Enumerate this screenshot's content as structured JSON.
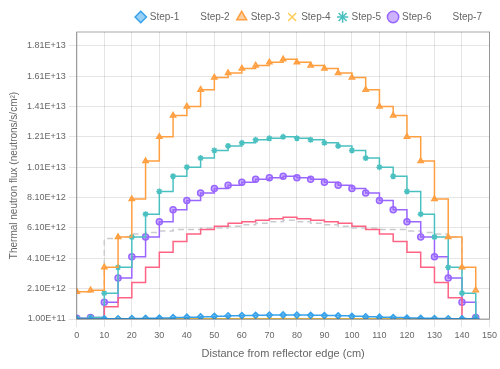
{
  "chart_data": {
    "type": "step",
    "x_label": "Distance from reflector edge (cm)",
    "y_label": "Thermal neutron flux (neutrons/s/cm²)",
    "xlim": [
      0,
      150
    ],
    "ylim": [
      100000000000.0,
      19000000000000.0
    ],
    "xticks": [
      0,
      10,
      20,
      30,
      40,
      50,
      60,
      70,
      80,
      90,
      100,
      110,
      120,
      130,
      140,
      150
    ],
    "yticks": [
      {
        "value": 100000000000.0,
        "label": "1.00E+11"
      },
      {
        "value": 2100000000000.0,
        "label": "2.10E+12"
      },
      {
        "value": 4100000000000.0,
        "label": "4.10E+12"
      },
      {
        "value": 6100000000000.0,
        "label": "6.10E+12"
      },
      {
        "value": 8100000000000.0,
        "label": "8.10E+12"
      },
      {
        "value": 10100000000000.0,
        "label": "1.01E+13"
      },
      {
        "value": 12100000000000.0,
        "label": "1.21E+13"
      },
      {
        "value": 14100000000000.0,
        "label": "1.41E+13"
      },
      {
        "value": 16100000000000.0,
        "label": "1.61E+13"
      },
      {
        "value": 18100000000000.0,
        "label": "1.81E+13"
      }
    ],
    "grid": true,
    "legend": "upper right",
    "x": [
      0,
      5,
      10,
      15,
      20,
      25,
      30,
      35,
      40,
      45,
      50,
      55,
      60,
      65,
      70,
      75,
      80,
      85,
      90,
      95,
      100,
      105,
      110,
      115,
      120,
      125,
      130,
      135,
      140,
      145
    ],
    "series": [
      {
        "name": "Step-1",
        "marker": "diamond",
        "line_style": "solid",
        "values": [
          100000000000.0,
          100000000000.0,
          110000000000.0,
          120000000000.0,
          130000000000.0,
          150000000000.0,
          170000000000.0,
          200000000000.0,
          220000000000.0,
          250000000000.0,
          280000000000.0,
          310000000000.0,
          330000000000.0,
          350000000000.0,
          360000000000.0,
          370000000000.0,
          360000000000.0,
          350000000000.0,
          330000000000.0,
          310000000000.0,
          280000000000.0,
          250000000000.0,
          220000000000.0,
          200000000000.0,
          170000000000.0,
          150000000000.0,
          130000000000.0,
          120000000000.0,
          110000000000.0,
          100000000000.0
        ]
      },
      {
        "name": "Step-2",
        "marker": "none",
        "line_style": "solid",
        "values": [
          100000000000.0,
          100000000000.0,
          900000000000.0,
          1500000000000.0,
          2500000000000.0,
          3500000000000.0,
          4500000000000.0,
          5200000000000.0,
          5700000000000.0,
          6000000000000.0,
          6200000000000.0,
          6400000000000.0,
          6500000000000.0,
          6600000000000.0,
          6700000000000.0,
          6800000000000.0,
          6700000000000.0,
          6600000000000.0,
          6500000000000.0,
          6400000000000.0,
          6200000000000.0,
          6000000000000.0,
          5700000000000.0,
          5200000000000.0,
          4500000000000.0,
          3500000000000.0,
          2500000000000.0,
          1500000000000.0,
          100000000000.0,
          100000000000.0
        ]
      },
      {
        "name": "Step-3",
        "marker": "triangle",
        "line_style": "solid",
        "values": [
          1900000000000.0,
          2000000000000.0,
          3500000000000.0,
          5500000000000.0,
          8000000000000.0,
          10500000000000.0,
          12100000000000.0,
          13500000000000.0,
          14100000000000.0,
          15200000000000.0,
          16000000000000.0,
          16300000000000.0,
          16600000000000.0,
          16800000000000.0,
          17000000000000.0,
          17200000000000.0,
          17000000000000.0,
          16800000000000.0,
          16600000000000.0,
          16300000000000.0,
          16000000000000.0,
          15200000000000.0,
          14100000000000.0,
          13500000000000.0,
          12100000000000.0,
          10500000000000.0,
          8000000000000.0,
          5500000000000.0,
          3500000000000.0,
          2000000000000.0
        ]
      },
      {
        "name": "Step-4",
        "marker": "x",
        "line_style": "solid",
        "values": [
          100000000000.0,
          100000000000.0,
          100000000000.0,
          110000000000.0,
          110000000000.0,
          110000000000.0,
          110000000000.0,
          110000000000.0,
          110000000000.0,
          110000000000.0,
          110000000000.0,
          110000000000.0,
          110000000000.0,
          110000000000.0,
          110000000000.0,
          110000000000.0,
          110000000000.0,
          110000000000.0,
          110000000000.0,
          110000000000.0,
          110000000000.0,
          110000000000.0,
          110000000000.0,
          110000000000.0,
          110000000000.0,
          110000000000.0,
          110000000000.0,
          110000000000.0,
          100000000000.0,
          100000000000.0
        ]
      },
      {
        "name": "Step-5",
        "marker": "star",
        "line_style": "solid",
        "values": [
          150000000000.0,
          200000000000.0,
          1800000000000.0,
          3500000000000.0,
          5500000000000.0,
          7000000000000.0,
          8500000000000.0,
          9500000000000.0,
          10100000000000.0,
          10700000000000.0,
          11200000000000.0,
          11500000000000.0,
          11700000000000.0,
          11900000000000.0,
          12000000000000.0,
          12100000000000.0,
          12000000000000.0,
          11900000000000.0,
          11700000000000.0,
          11500000000000.0,
          11200000000000.0,
          10700000000000.0,
          10100000000000.0,
          9500000000000.0,
          8500000000000.0,
          7000000000000.0,
          5500000000000.0,
          3500000000000.0,
          1800000000000.0,
          200000000000.0
        ]
      },
      {
        "name": "Step-6",
        "marker": "circle",
        "line_style": "solid",
        "values": [
          150000000000.0,
          200000000000.0,
          1200000000000.0,
          2800000000000.0,
          4200000000000.0,
          5500000000000.0,
          6500000000000.0,
          7300000000000.0,
          7900000000000.0,
          8400000000000.0,
          8700000000000.0,
          8900000000000.0,
          9100000000000.0,
          9300000000000.0,
          9400000000000.0,
          9500000000000.0,
          9400000000000.0,
          9300000000000.0,
          9100000000000.0,
          8900000000000.0,
          8700000000000.0,
          8400000000000.0,
          7900000000000.0,
          7300000000000.0,
          6500000000000.0,
          5500000000000.0,
          4200000000000.0,
          2800000000000.0,
          1200000000000.0,
          200000000000.0
        ]
      },
      {
        "name": "Step-7",
        "marker": "none",
        "line_style": "dashed",
        "values": [
          150000000000.0,
          150000000000.0,
          5400000000000.0,
          5500000000000.0,
          5700000000000.0,
          5800000000000.0,
          5900000000000.0,
          6000000000000.0,
          6000000000000.0,
          6100000000000.0,
          6100000000000.0,
          6200000000000.0,
          6300000000000.0,
          6400000000000.0,
          6500000000000.0,
          6600000000000.0,
          6500000000000.0,
          6400000000000.0,
          6300000000000.0,
          6200000000000.0,
          6100000000000.0,
          6100000000000.0,
          6000000000000.0,
          6000000000000.0,
          5900000000000.0,
          5800000000000.0,
          5700000000000.0,
          5500000000000.0,
          150000000000.0,
          100000000000.0
        ]
      }
    ]
  }
}
